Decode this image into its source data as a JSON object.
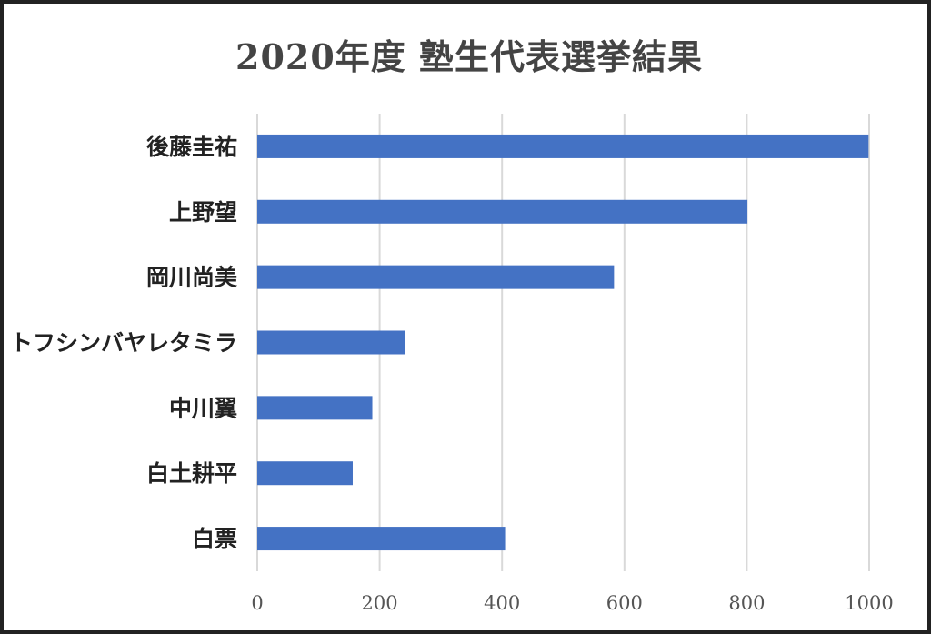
{
  "chart_data": {
    "type": "bar",
    "orientation": "horizontal",
    "title": "2020年度 塾生代表選挙結果",
    "categories": [
      "後藤圭祐",
      "上野望",
      "岡川尚美",
      "トフシンバヤレタミラ",
      "中川翼",
      "白土耕平",
      "白票"
    ],
    "values": [
      999,
      801,
      583,
      242,
      188,
      156,
      405
    ],
    "xlim": [
      0,
      1000
    ],
    "xticks": [
      0,
      200,
      400,
      600,
      800,
      1000
    ],
    "grid": "vertical",
    "bar_color": "#4472c4",
    "gridline_color": "#d9d9d9"
  }
}
